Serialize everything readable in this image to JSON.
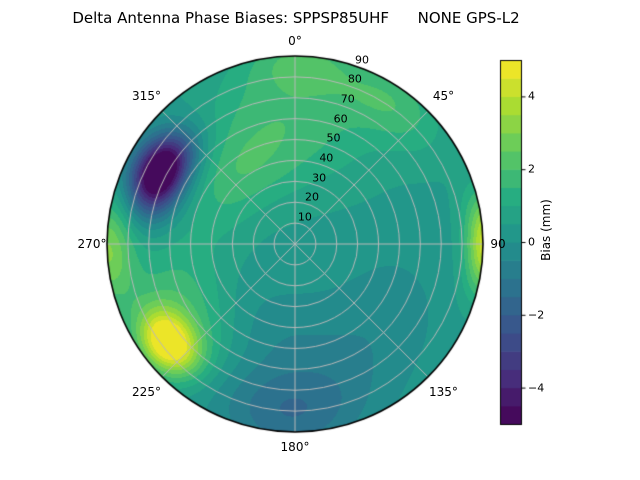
{
  "title": "Delta Antenna Phase Biases: SPPSP85UHF      NONE GPS-L2",
  "chart_data": {
    "type": "heatmap",
    "subtype": "polar_filled_contour",
    "title": "Delta Antenna Phase Biases: SPPSP85UHF      NONE GPS-L2",
    "projection": "polar",
    "azimuth_zero_location": "top",
    "azimuth_direction": "clockwise",
    "radial_range": [
      0,
      90
    ],
    "grid": true,
    "grid_color": "#b9b9b9",
    "outline_color": "#000000",
    "azimuth_labels": [
      {
        "label": "0°",
        "az": 0
      },
      {
        "label": "45°",
        "az": 45
      },
      {
        "label": "90",
        "az": 90
      },
      {
        "label": "135°",
        "az": 135
      },
      {
        "label": "180°",
        "az": 180
      },
      {
        "label": "225°",
        "az": 225
      },
      {
        "label": "270°",
        "az": 270
      },
      {
        "label": "315°",
        "az": 315
      }
    ],
    "radial_tick_labels": [
      {
        "label": "10",
        "value": 10
      },
      {
        "label": "20",
        "value": 20
      },
      {
        "label": "30",
        "value": 30
      },
      {
        "label": "40",
        "value": 40
      },
      {
        "label": "50",
        "value": 50
      },
      {
        "label": "60",
        "value": 60
      },
      {
        "label": "70",
        "value": 70
      },
      {
        "label": "80",
        "value": 80
      },
      {
        "label": "90",
        "value": 90
      }
    ],
    "radial_tick_azimuth_deg": 20,
    "colorbar": {
      "label": "Bias (mm)",
      "orientation": "vertical",
      "position": "right",
      "ticks": [
        {
          "label": "4",
          "value": 4
        },
        {
          "label": "2",
          "value": 2
        },
        {
          "label": "0",
          "value": 0
        },
        {
          "label": "−2",
          "value": -2
        },
        {
          "label": "−4",
          "value": -4
        }
      ]
    },
    "value_label": "Bias (mm)",
    "value_range": [
      -5,
      5
    ],
    "contour_level_step": 0.5,
    "colormap": "viridis",
    "colormap_stops": [
      [
        0,
        "#440154"
      ],
      [
        0.125,
        "#472d7b"
      ],
      [
        0.25,
        "#3b528b"
      ],
      [
        0.375,
        "#2c728e"
      ],
      [
        0.5,
        "#21918c"
      ],
      [
        0.625,
        "#27ad81"
      ],
      [
        0.75,
        "#5ec962"
      ],
      [
        0.875,
        "#aadc32"
      ],
      [
        1,
        "#fde725"
      ]
    ],
    "field": {
      "description": "Bias (mm) as smooth Gaussian anomalies over azimuth/elevation; base background near 0.3 mm (teal band 0 to 0.5).",
      "base": 0.35,
      "blobs": [
        {
          "az": 298,
          "el": 73,
          "amp": -7.0,
          "sr": 9,
          "st": 14,
          "note": "purple minimum upper-left ~-5"
        },
        {
          "az": 232,
          "el": 77,
          "amp": 4.8,
          "sr": 9,
          "st": 12,
          "note": "yellow maximum lower-left ~+4.5"
        },
        {
          "az": 238,
          "el": 60,
          "amp": 1.6,
          "sr": 18,
          "st": 26,
          "note": "green halo around SW max"
        },
        {
          "az": 90,
          "el": 92,
          "amp": 4.2,
          "sr": 7,
          "st": 16,
          "note": "yellow-green sliver at right rim ~+3.5"
        },
        {
          "az": 268,
          "el": 90,
          "amp": 2.6,
          "sr": 9,
          "st": 18,
          "note": "green band at left rim ~+2.5"
        },
        {
          "az": 356,
          "el": 60,
          "amp": 1.5,
          "sr": 22,
          "st": 30,
          "note": "broad green top ~+1.5"
        },
        {
          "az": 35,
          "el": 82,
          "amp": 1.4,
          "sr": 12,
          "st": 20,
          "note": "green near 45 deg rim"
        },
        {
          "az": 2,
          "el": 88,
          "amp": 1.2,
          "sr": 10,
          "st": 18,
          "note": "green at top rim"
        },
        {
          "az": 317,
          "el": 42,
          "amp": 1.0,
          "sr": 14,
          "st": 20,
          "note": "green mid upper-left"
        },
        {
          "az": 182,
          "el": 80,
          "amp": -1.8,
          "sr": 16,
          "st": 26,
          "note": "dark blue-teal at bottom ~-1.5"
        },
        {
          "az": 140,
          "el": 55,
          "amp": -0.7,
          "sr": 20,
          "st": 30,
          "note": "mild dip lower-right"
        },
        {
          "az": 205,
          "el": 45,
          "amp": -0.8,
          "sr": 16,
          "st": 22,
          "note": "mild dip inner lower-left"
        }
      ]
    }
  }
}
